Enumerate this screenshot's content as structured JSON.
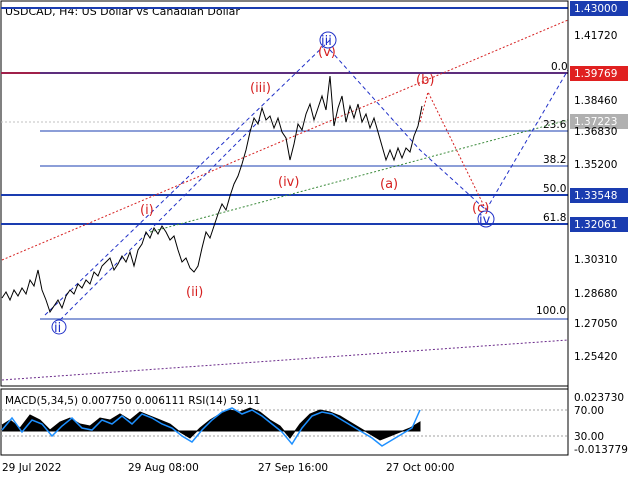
{
  "chart": {
    "title": "USDCAD, H4:  US Dollar vs Canadian Dollar",
    "price_axis": [
      {
        "label": "1.43000",
        "highlight": true,
        "color": "#1a3cb0"
      },
      {
        "label": "1.41720",
        "highlight": false
      },
      {
        "label": "1.39769",
        "highlight": true,
        "color": "#e02020"
      },
      {
        "label": "1.38460",
        "highlight": false
      },
      {
        "label": "1.37223",
        "highlight": true,
        "color": "#b0b0b0"
      },
      {
        "label": "1.36830",
        "highlight": false
      },
      {
        "label": "1.35200",
        "highlight": false
      },
      {
        "label": "1.33548",
        "highlight": true,
        "color": "#1a3cb0"
      },
      {
        "label": "1.32061",
        "highlight": true,
        "color": "#1a3cb0"
      },
      {
        "label": "1.30310",
        "highlight": false
      },
      {
        "label": "1.28680",
        "highlight": false
      },
      {
        "label": "1.27050",
        "highlight": false
      },
      {
        "label": "1.25420",
        "highlight": false
      }
    ],
    "time_axis": [
      "29 Jul 2022",
      "29 Aug 08:00",
      "27 Sep 16:00",
      "27 Oct 00:00"
    ],
    "fib_levels": [
      "0.0",
      "23.6",
      "38.2",
      "50.0",
      "61.8",
      "100.0"
    ],
    "wave_labels_red": [
      "(i)",
      "(ii)",
      "(iii)",
      "(iv)",
      "(v)",
      "(a)",
      "(b)",
      "(c)"
    ],
    "wave_labels_blue": [
      "ii",
      "iii",
      "iv"
    ],
    "colors": {
      "red": "#d62020",
      "blue": "#2030c8",
      "price_line": "#000000"
    }
  },
  "indicator": {
    "label": "MACD(5,34,5) 0.007750 0.006111 RSI(14) 59.11",
    "axis": [
      "0.023730",
      "70.00",
      "30.00",
      "-0.013779"
    ]
  }
}
